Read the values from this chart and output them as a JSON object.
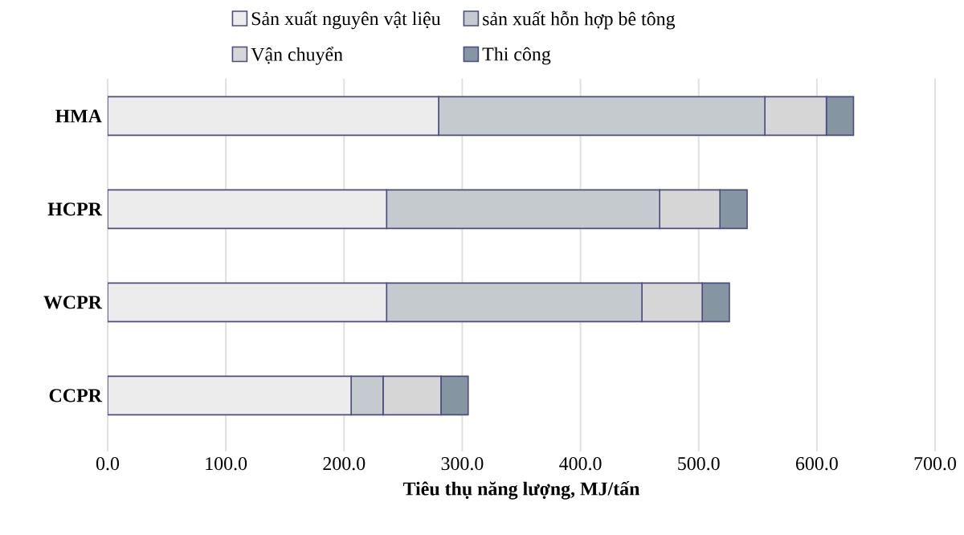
{
  "chart_data": {
    "type": "bar",
    "orientation": "horizontal",
    "stacked": true,
    "xlabel": "Tiêu thụ năng lượng, MJ/tấn",
    "categories": [
      "HMA",
      "HCPR",
      "WCPR",
      "CCPR"
    ],
    "series": [
      {
        "name": "Sản xuất nguyên vật liệu",
        "color": "#ececec",
        "values": [
          280,
          236,
          236,
          206
        ]
      },
      {
        "name": "sản xuất hỗn hợp bê tông",
        "color": "#c4cacd",
        "values": [
          276,
          231,
          216,
          27
        ]
      },
      {
        "name": "Vận chuyển",
        "color": "#d6d6d6",
        "values": [
          52,
          51,
          51,
          49
        ]
      },
      {
        "name": "Thi công",
        "color": "#8595a1",
        "values": [
          23,
          23,
          23,
          23
        ]
      }
    ],
    "xlim": [
      0,
      700
    ],
    "xticks": [
      {
        "value": 0,
        "label": "0.0"
      },
      {
        "value": 100,
        "label": "100.0"
      },
      {
        "value": 200,
        "label": "200.0"
      },
      {
        "value": 300,
        "label": "300.0"
      },
      {
        "value": 400,
        "label": "400.0"
      },
      {
        "value": 500,
        "label": "500.0"
      },
      {
        "value": 600,
        "label": "600.0"
      },
      {
        "value": 700,
        "label": "700.0"
      }
    ],
    "grid": "x",
    "legend": "top"
  }
}
